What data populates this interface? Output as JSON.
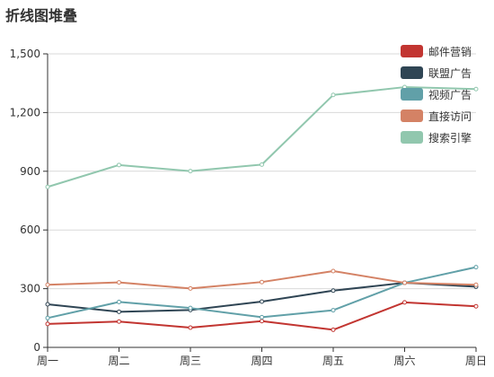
{
  "chart_data": {
    "type": "line",
    "title": "折线图堆叠",
    "xlabel": "",
    "ylabel": "",
    "categories": [
      "周一",
      "周二",
      "周三",
      "周四",
      "周五",
      "周六",
      "周日"
    ],
    "y_ticks": [
      "0",
      "300",
      "600",
      "900",
      "1,200",
      "1,500"
    ],
    "ylim": [
      0,
      1500
    ],
    "grid": true,
    "legend_position": "top-right",
    "series": [
      {
        "name": "邮件营销",
        "color": "#c23531",
        "values": [
          120,
          132,
          101,
          134,
          90,
          230,
          210
        ]
      },
      {
        "name": "联盟广告",
        "color": "#2f4554",
        "values": [
          220,
          182,
          191,
          234,
          290,
          330,
          310
        ]
      },
      {
        "name": "视频广告",
        "color": "#61a0a8",
        "values": [
          150,
          232,
          201,
          154,
          190,
          330,
          410
        ]
      },
      {
        "name": "直接访问",
        "color": "#d48265",
        "values": [
          320,
          332,
          301,
          334,
          390,
          330,
          320
        ]
      },
      {
        "name": "搜索引擎",
        "color": "#91c7ae",
        "values": [
          820,
          932,
          901,
          934,
          1290,
          1330,
          1320
        ]
      }
    ]
  }
}
